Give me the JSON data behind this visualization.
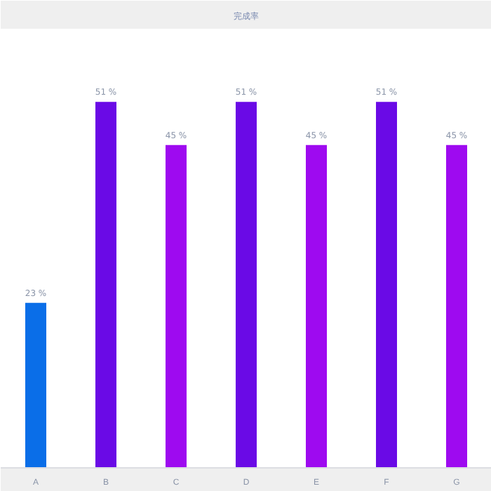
{
  "chart_data": {
    "type": "bar",
    "title": "完成率",
    "categories": [
      "A",
      "B",
      "C",
      "D",
      "E",
      "F",
      "G"
    ],
    "values": [
      23,
      51,
      45,
      51,
      45,
      51,
      45
    ],
    "value_labels": [
      "23 %",
      "51 %",
      "45 %",
      "51 %",
      "45 %",
      "51 %",
      "45 %"
    ],
    "colors": [
      "#0a6ee8",
      "#6a0ae6",
      "#9e0af0",
      "#6a0ae6",
      "#9e0af0",
      "#6a0ae6",
      "#9e0af0"
    ],
    "grid": false
  }
}
